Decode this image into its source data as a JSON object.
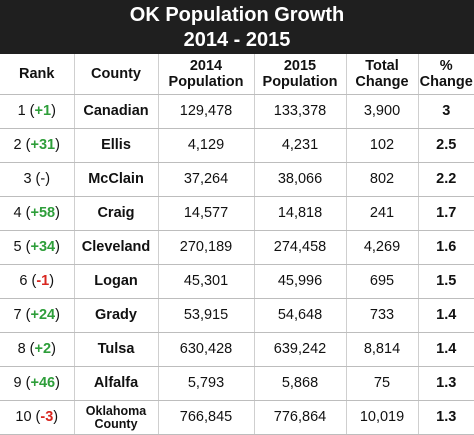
{
  "title": {
    "line1": "OK Population Growth",
    "line2": "2014 - 2015"
  },
  "headers": {
    "rank": "Rank",
    "county": "County",
    "pop2014": "2014 Population",
    "pop2015": "2015 Population",
    "total_change": "Total Change",
    "pct_change": "% Change"
  },
  "rows": [
    {
      "rank": "1",
      "rank_change": "+1",
      "county": "Canadian",
      "pop2014": "129,478",
      "pop2015": "133,378",
      "total_change": "3,900",
      "pct_change": "3"
    },
    {
      "rank": "2",
      "rank_change": "+31",
      "county": "Ellis",
      "pop2014": "4,129",
      "pop2015": "4,231",
      "total_change": "102",
      "pct_change": "2.5"
    },
    {
      "rank": "3",
      "rank_change": "-",
      "county": "McClain",
      "pop2014": "37,264",
      "pop2015": "38,066",
      "total_change": "802",
      "pct_change": "2.2"
    },
    {
      "rank": "4",
      "rank_change": "+58",
      "county": "Craig",
      "pop2014": "14,577",
      "pop2015": "14,818",
      "total_change": "241",
      "pct_change": "1.7"
    },
    {
      "rank": "5",
      "rank_change": "+34",
      "county": "Cleveland",
      "pop2014": "270,189",
      "pop2015": "274,458",
      "total_change": "4,269",
      "pct_change": "1.6"
    },
    {
      "rank": "6",
      "rank_change": "-1",
      "county": "Logan",
      "pop2014": "45,301",
      "pop2015": "45,996",
      "total_change": "695",
      "pct_change": "1.5"
    },
    {
      "rank": "7",
      "rank_change": "+24",
      "county": "Grady",
      "pop2014": "53,915",
      "pop2015": "54,648",
      "total_change": "733",
      "pct_change": "1.4"
    },
    {
      "rank": "8",
      "rank_change": "+2",
      "county": "Tulsa",
      "pop2014": "630,428",
      "pop2015": "639,242",
      "total_change": "8,814",
      "pct_change": "1.4"
    },
    {
      "rank": "9",
      "rank_change": "+46",
      "county": "Alfalfa",
      "pop2014": "5,793",
      "pop2015": "5,868",
      "total_change": "75",
      "pct_change": "1.3"
    },
    {
      "rank": "10",
      "rank_change": "-3",
      "county": "Oklahoma County",
      "pop2014": "766,845",
      "pop2015": "776,864",
      "total_change": "10,019",
      "pct_change": "1.3"
    }
  ],
  "colors": {
    "title_bg": "#1f1f1f",
    "rank_up": "#2e9e3a",
    "rank_down": "#d8261f"
  }
}
